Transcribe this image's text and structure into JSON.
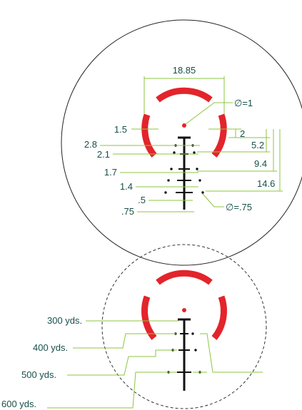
{
  "top_reticle": {
    "labels": {
      "outer_width": "18.85",
      "dot_diameter": "∅=1",
      "ring_gap": "1.5",
      "offset_2": "2",
      "offset_5_2": "5.2",
      "offset_9_4": "9.4",
      "offset_14_6": "14.6",
      "width_2_8": "2.8",
      "width_2_1": "2.1",
      "width_1_7": "1.7",
      "width_1_4": "1.4",
      "width_5": ".5",
      "width_75": ".75",
      "holdover_dot_diameter": "∅=.75"
    }
  },
  "bottom_reticle": {
    "yardages": [
      "300 yds.",
      "400 yds.",
      "500 yds.",
      "600 yds."
    ]
  },
  "colors": {
    "ring": "#e3242b",
    "dimension_line": "#8cc63f",
    "label_text": "#17504a",
    "reticle": "#111111"
  }
}
